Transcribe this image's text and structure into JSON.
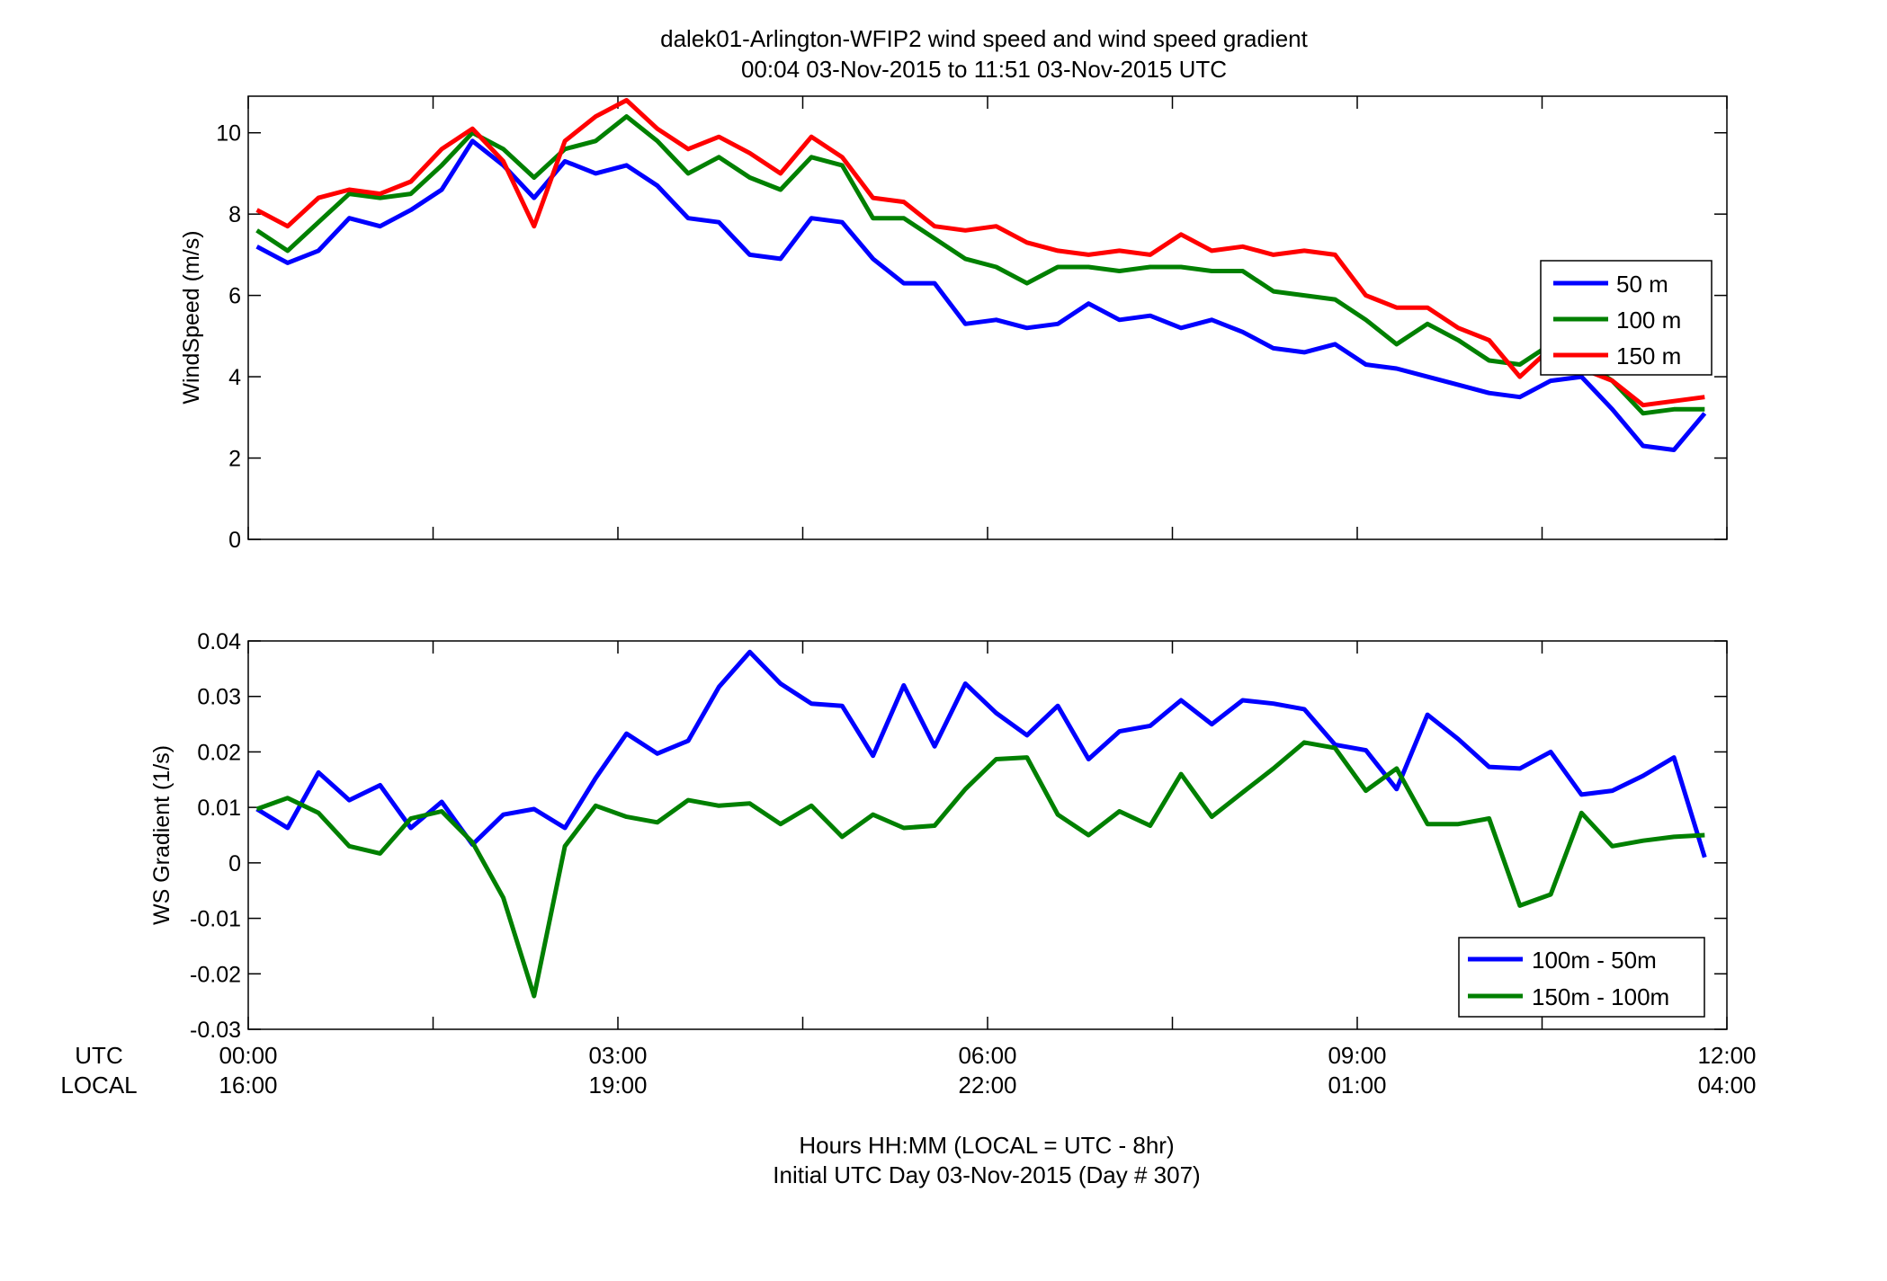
{
  "figure": {
    "title_line1": "dalek01-Arlington-WFIP2  wind speed and wind speed gradient",
    "title_line2": "00:04 03-Nov-2015 to 11:51 03-Nov-2015  UTC",
    "xlabel_line1": "Hours HH:MM  (LOCAL = UTC - 8hr)",
    "xlabel_line2": "Initial UTC Day 03-Nov-2015 (Day # 307)",
    "utc_row_label": "UTC",
    "local_row_label": "LOCAL"
  },
  "chart_data": [
    {
      "type": "line",
      "ylabel": "WindSpeed (m/s)",
      "xlabel": "",
      "xlim": [
        0,
        12
      ],
      "ylim": [
        0,
        10.9
      ],
      "yticks": [
        0,
        2,
        4,
        6,
        8,
        10
      ],
      "ytick_labels": [
        "0",
        "2",
        "4",
        "6",
        "8",
        "10"
      ],
      "xticks": [
        0,
        1.5,
        3,
        4.5,
        6,
        7.5,
        9,
        10.5,
        12
      ],
      "grid": false,
      "legend_position": "right",
      "series": [
        {
          "name": "50 m",
          "color": "#0000ff",
          "x": [
            0.07,
            0.32,
            0.57,
            0.82,
            1.07,
            1.32,
            1.57,
            1.82,
            2.07,
            2.32,
            2.57,
            2.82,
            3.07,
            3.32,
            3.57,
            3.82,
            4.07,
            4.32,
            4.57,
            4.82,
            5.07,
            5.32,
            5.57,
            5.82,
            6.07,
            6.32,
            6.57,
            6.82,
            7.07,
            7.32,
            7.57,
            7.82,
            8.07,
            8.32,
            8.57,
            8.82,
            9.07,
            9.32,
            9.57,
            9.82,
            10.07,
            10.32,
            10.57,
            10.82,
            11.07,
            11.32,
            11.57,
            11.82
          ],
          "y": [
            7.2,
            6.8,
            7.1,
            7.9,
            7.7,
            8.1,
            8.6,
            9.8,
            9.2,
            8.4,
            9.3,
            9.0,
            9.2,
            8.7,
            7.9,
            7.8,
            7.0,
            6.9,
            7.9,
            7.8,
            6.9,
            6.3,
            6.3,
            5.3,
            5.4,
            5.2,
            5.3,
            5.8,
            5.4,
            5.5,
            5.2,
            5.4,
            5.1,
            4.7,
            4.6,
            4.8,
            4.3,
            4.2,
            4.0,
            3.8,
            3.6,
            3.5,
            3.9,
            4.0,
            3.2,
            2.3,
            2.2,
            3.1
          ]
        },
        {
          "name": "100 m",
          "color": "#008000",
          "x": [
            0.07,
            0.32,
            0.57,
            0.82,
            1.07,
            1.32,
            1.57,
            1.82,
            2.07,
            2.32,
            2.57,
            2.82,
            3.07,
            3.32,
            3.57,
            3.82,
            4.07,
            4.32,
            4.57,
            4.82,
            5.07,
            5.32,
            5.57,
            5.82,
            6.07,
            6.32,
            6.57,
            6.82,
            7.07,
            7.32,
            7.57,
            7.82,
            8.07,
            8.32,
            8.57,
            8.82,
            9.07,
            9.32,
            9.57,
            9.82,
            10.07,
            10.32,
            10.57,
            10.82,
            11.07,
            11.32,
            11.57,
            11.82
          ],
          "y": [
            7.6,
            7.1,
            7.8,
            8.5,
            8.4,
            8.5,
            9.2,
            10.0,
            9.6,
            8.9,
            9.6,
            9.8,
            10.4,
            9.8,
            9.0,
            9.4,
            8.9,
            8.6,
            9.4,
            9.2,
            7.9,
            7.9,
            7.4,
            6.9,
            6.7,
            6.3,
            6.7,
            6.7,
            6.6,
            6.7,
            6.7,
            6.6,
            6.6,
            6.1,
            6.0,
            5.9,
            5.4,
            4.8,
            5.3,
            4.9,
            4.4,
            4.3,
            4.8,
            4.4,
            3.9,
            3.1,
            3.2,
            3.2
          ]
        },
        {
          "name": "150 m",
          "color": "#ff0000",
          "x": [
            0.07,
            0.32,
            0.57,
            0.82,
            1.07,
            1.32,
            1.57,
            1.82,
            2.07,
            2.32,
            2.57,
            2.82,
            3.07,
            3.32,
            3.57,
            3.82,
            4.07,
            4.32,
            4.57,
            4.82,
            5.07,
            5.32,
            5.57,
            5.82,
            6.07,
            6.32,
            6.57,
            6.82,
            7.07,
            7.32,
            7.57,
            7.82,
            8.07,
            8.32,
            8.57,
            8.82,
            9.07,
            9.32,
            9.57,
            9.82,
            10.07,
            10.32,
            10.57,
            10.82,
            11.07,
            11.32,
            11.57,
            11.82
          ],
          "y": [
            8.1,
            7.7,
            8.4,
            8.6,
            8.5,
            8.8,
            9.6,
            10.1,
            9.3,
            7.7,
            9.8,
            10.4,
            10.8,
            10.1,
            9.6,
            9.9,
            9.5,
            9.0,
            9.9,
            9.4,
            8.4,
            8.3,
            7.7,
            7.6,
            7.7,
            7.3,
            7.1,
            7.0,
            7.1,
            7.0,
            7.5,
            7.1,
            7.2,
            7.0,
            7.1,
            7.0,
            6.0,
            5.7,
            5.7,
            5.2,
            4.9,
            4.0,
            4.7,
            4.2,
            3.9,
            3.3,
            3.4,
            3.5
          ]
        }
      ]
    },
    {
      "type": "line",
      "ylabel": "WS Gradient (1/s)",
      "xlabel": "",
      "xlim": [
        0,
        12
      ],
      "ylim": [
        -0.03,
        0.04
      ],
      "yticks": [
        -0.03,
        -0.02,
        -0.01,
        0,
        0.01,
        0.02,
        0.03,
        0.04
      ],
      "ytick_labels": [
        "-0.03",
        "-0.02",
        "-0.01",
        "0",
        "0.01",
        "0.02",
        "0.03",
        "0.04"
      ],
      "xticks": [
        0,
        1.5,
        3,
        4.5,
        6,
        7.5,
        9,
        10.5,
        12
      ],
      "xtick_labels_utc": [
        "00:00",
        "03:00",
        "06:00",
        "09:00",
        "12:00"
      ],
      "xtick_labels_local": [
        "16:00",
        "19:00",
        "22:00",
        "01:00",
        "04:00"
      ],
      "xtick_label_positions": [
        0,
        3,
        6,
        9,
        12
      ],
      "grid": false,
      "legend_position": "bottom-right",
      "series": [
        {
          "name": "100m - 50m",
          "color": "#0000ff",
          "x": [
            0.07,
            0.32,
            0.57,
            0.82,
            1.07,
            1.32,
            1.57,
            1.82,
            2.07,
            2.32,
            2.57,
            2.82,
            3.07,
            3.32,
            3.57,
            3.82,
            4.07,
            4.32,
            4.57,
            4.82,
            5.07,
            5.32,
            5.57,
            5.82,
            6.07,
            6.32,
            6.57,
            6.82,
            7.07,
            7.32,
            7.57,
            7.82,
            8.07,
            8.32,
            8.57,
            8.82,
            9.07,
            9.32,
            9.57,
            9.82,
            10.07,
            10.32,
            10.57,
            10.82,
            11.07,
            11.32,
            11.57,
            11.82
          ],
          "y": [
            0.0097,
            0.0063,
            0.0163,
            0.0113,
            0.014,
            0.0063,
            0.011,
            0.0033,
            0.0087,
            0.0097,
            0.0063,
            0.0153,
            0.0233,
            0.0197,
            0.022,
            0.0317,
            0.038,
            0.0323,
            0.0287,
            0.0283,
            0.0193,
            0.032,
            0.021,
            0.0323,
            0.027,
            0.023,
            0.0283,
            0.0187,
            0.0237,
            0.0247,
            0.0293,
            0.025,
            0.0293,
            0.0287,
            0.0277,
            0.0213,
            0.0203,
            0.0133,
            0.0267,
            0.0223,
            0.0173,
            0.017,
            0.02,
            0.0123,
            0.013,
            0.0157,
            0.019,
            0.001
          ]
        },
        {
          "name": "150m - 100m",
          "color": "#008000",
          "x": [
            0.07,
            0.32,
            0.57,
            0.82,
            1.07,
            1.32,
            1.57,
            1.82,
            2.07,
            2.32,
            2.57,
            2.82,
            3.07,
            3.32,
            3.57,
            3.82,
            4.07,
            4.32,
            4.57,
            4.82,
            5.07,
            5.32,
            5.57,
            5.82,
            6.07,
            6.32,
            6.57,
            6.82,
            7.07,
            7.32,
            7.57,
            7.82,
            8.07,
            8.32,
            8.57,
            8.82,
            9.07,
            9.32,
            9.57,
            9.82,
            10.07,
            10.32,
            10.57,
            10.82,
            11.07,
            11.32,
            11.57,
            11.82
          ],
          "y": [
            0.0097,
            0.0117,
            0.009,
            0.003,
            0.0017,
            0.008,
            0.0093,
            0.0037,
            -0.0063,
            -0.024,
            0.003,
            0.0103,
            0.0083,
            0.0073,
            0.0113,
            0.0103,
            0.0107,
            0.007,
            0.0103,
            0.0047,
            0.0087,
            0.0063,
            0.0067,
            0.0133,
            0.0187,
            0.019,
            0.0087,
            0.005,
            0.0093,
            0.0067,
            0.016,
            0.0083,
            0.0127,
            0.017,
            0.0217,
            0.0207,
            0.013,
            0.017,
            0.007,
            0.007,
            0.008,
            -0.0077,
            -0.0057,
            0.009,
            0.003,
            0.004,
            0.0047,
            0.005
          ]
        }
      ]
    }
  ]
}
